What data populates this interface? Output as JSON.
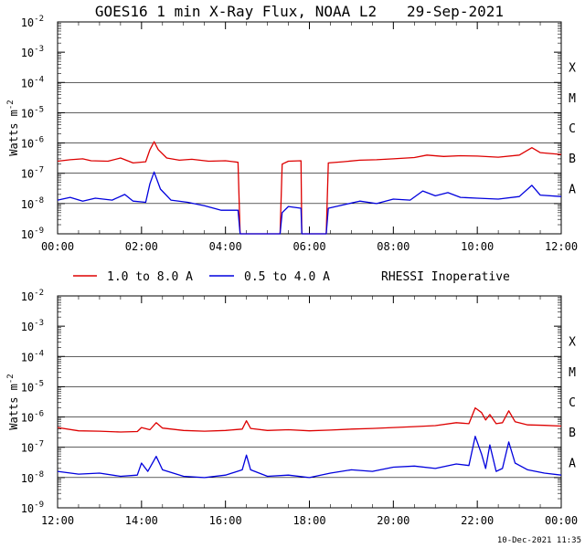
{
  "header": {
    "title": "GOES16 1 min X-Ray Flux, NOAA L2",
    "date": "29-Sep-2021"
  },
  "footer": {
    "timestamp": "10-Dec-2021 11:35"
  },
  "colors": {
    "long_channel": "#dd0000",
    "short_channel": "#0000dd",
    "grid": "#000000"
  },
  "legend": {
    "long_label": "1.0 to 8.0 A",
    "short_label": "0.5 to 4.0 A",
    "note": "RHESSI Inoperative"
  },
  "chart_data": [
    {
      "type": "line",
      "ylabel": "Watts m",
      "ylabel_sup": "-2",
      "yscale": "log",
      "ylim": [
        1e-09,
        0.01
      ],
      "y_tick_exponents": [
        -9,
        -8,
        -7,
        -6,
        -5,
        -4,
        -3,
        -2
      ],
      "flare_classes": [
        "A",
        "B",
        "C",
        "M",
        "X"
      ],
      "xlim_hours": [
        0,
        12
      ],
      "x_tick_labels": [
        "00:00",
        "02:00",
        "04:00",
        "06:00",
        "08:00",
        "10:00",
        "12:00"
      ],
      "grid": true,
      "series": [
        {
          "name": "1.0 to 8.0 A",
          "color": "#dd0000",
          "points": [
            [
              0,
              2.5e-07
            ],
            [
              0.3,
              2.8e-07
            ],
            [
              0.6,
              3e-07
            ],
            [
              0.8,
              2.6e-07
            ],
            [
              1.2,
              2.5e-07
            ],
            [
              1.5,
              3.2e-07
            ],
            [
              1.8,
              2.2e-07
            ],
            [
              2.1,
              2.4e-07
            ],
            [
              2.2,
              6e-07
            ],
            [
              2.3,
              1.1e-06
            ],
            [
              2.4,
              6e-07
            ],
            [
              2.6,
              3.2e-07
            ],
            [
              2.9,
              2.7e-07
            ],
            [
              3.2,
              2.9e-07
            ],
            [
              3.6,
              2.5e-07
            ],
            [
              4.0,
              2.6e-07
            ],
            [
              4.3,
              2.3e-07
            ],
            [
              4.35,
              1e-09
            ],
            [
              5.3,
              1e-09
            ],
            [
              5.35,
              2e-07
            ],
            [
              5.5,
              2.5e-07
            ],
            [
              5.8,
              2.6e-07
            ],
            [
              5.82,
              1e-09
            ],
            [
              6.4,
              1e-09
            ],
            [
              6.45,
              2.2e-07
            ],
            [
              6.8,
              2.4e-07
            ],
            [
              7.2,
              2.7e-07
            ],
            [
              7.6,
              2.8e-07
            ],
            [
              8.0,
              3e-07
            ],
            [
              8.5,
              3.3e-07
            ],
            [
              8.8,
              4e-07
            ],
            [
              9.2,
              3.6e-07
            ],
            [
              9.6,
              3.8e-07
            ],
            [
              10.0,
              3.7e-07
            ],
            [
              10.5,
              3.4e-07
            ],
            [
              11.0,
              4e-07
            ],
            [
              11.3,
              7e-07
            ],
            [
              11.5,
              4.8e-07
            ],
            [
              12,
              4.2e-07
            ]
          ]
        },
        {
          "name": "0.5 to 4.0 A",
          "color": "#0000dd",
          "points": [
            [
              0,
              1.3e-08
            ],
            [
              0.3,
              1.6e-08
            ],
            [
              0.6,
              1.2e-08
            ],
            [
              0.9,
              1.5e-08
            ],
            [
              1.3,
              1.3e-08
            ],
            [
              1.6,
              2e-08
            ],
            [
              1.8,
              1.2e-08
            ],
            [
              2.1,
              1.1e-08
            ],
            [
              2.2,
              4.5e-08
            ],
            [
              2.3,
              1.1e-07
            ],
            [
              2.45,
              3e-08
            ],
            [
              2.7,
              1.3e-08
            ],
            [
              3.1,
              1.1e-08
            ],
            [
              3.5,
              8.5e-09
            ],
            [
              3.9,
              6e-09
            ],
            [
              4.3,
              6e-09
            ],
            [
              4.35,
              1e-09
            ],
            [
              5.3,
              1e-09
            ],
            [
              5.35,
              5e-09
            ],
            [
              5.5,
              8e-09
            ],
            [
              5.8,
              7e-09
            ],
            [
              5.82,
              1e-09
            ],
            [
              6.4,
              1e-09
            ],
            [
              6.45,
              7e-09
            ],
            [
              6.8,
              9e-09
            ],
            [
              7.2,
              1.2e-08
            ],
            [
              7.6,
              1e-08
            ],
            [
              8.0,
              1.4e-08
            ],
            [
              8.4,
              1.3e-08
            ],
            [
              8.7,
              2.6e-08
            ],
            [
              9.0,
              1.8e-08
            ],
            [
              9.3,
              2.3e-08
            ],
            [
              9.6,
              1.6e-08
            ],
            [
              10.0,
              1.5e-08
            ],
            [
              10.5,
              1.4e-08
            ],
            [
              11.0,
              1.7e-08
            ],
            [
              11.3,
              4e-08
            ],
            [
              11.5,
              1.9e-08
            ],
            [
              12,
              1.7e-08
            ]
          ]
        }
      ]
    },
    {
      "type": "line",
      "ylabel": "Watts m",
      "ylabel_sup": "-2",
      "yscale": "log",
      "ylim": [
        1e-09,
        0.01
      ],
      "y_tick_exponents": [
        -9,
        -8,
        -7,
        -6,
        -5,
        -4,
        -3,
        -2
      ],
      "flare_classes": [
        "A",
        "B",
        "C",
        "M",
        "X"
      ],
      "xlim_hours": [
        12,
        24
      ],
      "x_tick_labels": [
        "12:00",
        "14:00",
        "16:00",
        "18:00",
        "20:00",
        "22:00",
        "00:00"
      ],
      "grid": true,
      "series": [
        {
          "name": "1.0 to 8.0 A",
          "color": "#dd0000",
          "points": [
            [
              12,
              4.5e-07
            ],
            [
              12.5,
              3.5e-07
            ],
            [
              13,
              3.4e-07
            ],
            [
              13.5,
              3.2e-07
            ],
            [
              13.9,
              3.3e-07
            ],
            [
              14.0,
              4.5e-07
            ],
            [
              14.2,
              3.8e-07
            ],
            [
              14.35,
              6.5e-07
            ],
            [
              14.5,
              4.3e-07
            ],
            [
              15,
              3.6e-07
            ],
            [
              15.5,
              3.4e-07
            ],
            [
              16,
              3.6e-07
            ],
            [
              16.4,
              4e-07
            ],
            [
              16.5,
              7.5e-07
            ],
            [
              16.6,
              4.2e-07
            ],
            [
              17,
              3.6e-07
            ],
            [
              17.5,
              3.8e-07
            ],
            [
              18,
              3.5e-07
            ],
            [
              18.5,
              3.7e-07
            ],
            [
              19,
              4e-07
            ],
            [
              19.5,
              4.2e-07
            ],
            [
              20,
              4.5e-07
            ],
            [
              20.5,
              4.8e-07
            ],
            [
              21,
              5.2e-07
            ],
            [
              21.5,
              6.5e-07
            ],
            [
              21.8,
              6e-07
            ],
            [
              21.95,
              2e-06
            ],
            [
              22.1,
              1.4e-06
            ],
            [
              22.2,
              8e-07
            ],
            [
              22.3,
              1.2e-06
            ],
            [
              22.45,
              6e-07
            ],
            [
              22.6,
              6.5e-07
            ],
            [
              22.75,
              1.6e-06
            ],
            [
              22.9,
              7e-07
            ],
            [
              23.2,
              5.5e-07
            ],
            [
              23.6,
              5.3e-07
            ],
            [
              24,
              5e-07
            ]
          ]
        },
        {
          "name": "0.5 to 4.0 A",
          "color": "#0000dd",
          "points": [
            [
              12,
              1.6e-08
            ],
            [
              12.5,
              1.3e-08
            ],
            [
              13,
              1.4e-08
            ],
            [
              13.5,
              1.1e-08
            ],
            [
              13.9,
              1.2e-08
            ],
            [
              14.0,
              3e-08
            ],
            [
              14.15,
              1.6e-08
            ],
            [
              14.35,
              5e-08
            ],
            [
              14.5,
              1.8e-08
            ],
            [
              15,
              1.1e-08
            ],
            [
              15.5,
              1e-08
            ],
            [
              16,
              1.2e-08
            ],
            [
              16.4,
              1.8e-08
            ],
            [
              16.5,
              5.5e-08
            ],
            [
              16.6,
              1.8e-08
            ],
            [
              17,
              1.1e-08
            ],
            [
              17.5,
              1.2e-08
            ],
            [
              18,
              1e-08
            ],
            [
              18.5,
              1.4e-08
            ],
            [
              19,
              1.8e-08
            ],
            [
              19.5,
              1.6e-08
            ],
            [
              20,
              2.2e-08
            ],
            [
              20.5,
              2.4e-08
            ],
            [
              21,
              2e-08
            ],
            [
              21.5,
              2.8e-08
            ],
            [
              21.8,
              2.5e-08
            ],
            [
              21.95,
              2.3e-07
            ],
            [
              22.1,
              6e-08
            ],
            [
              22.2,
              2e-08
            ],
            [
              22.3,
              1.2e-07
            ],
            [
              22.45,
              1.6e-08
            ],
            [
              22.6,
              2e-08
            ],
            [
              22.75,
              1.5e-07
            ],
            [
              22.9,
              3e-08
            ],
            [
              23.2,
              1.8e-08
            ],
            [
              23.6,
              1.4e-08
            ],
            [
              24,
              1.2e-08
            ]
          ]
        }
      ]
    }
  ]
}
